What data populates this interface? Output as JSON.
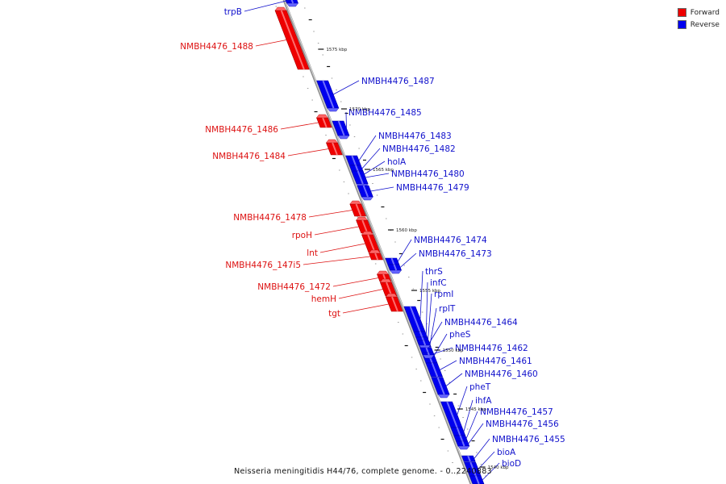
{
  "legend": {
    "forward_label": "Forward",
    "reverse_label": "Reverse",
    "forward_color": "#ee0000",
    "reverse_color": "#0000ee"
  },
  "caption": "Neisseria meningitidis H44/76, complete genome. - 0..2240883",
  "scale_marks": [
    "1575 kbp",
    "1570 kbp",
    "1565 kbp",
    "1560 kbp",
    "1555 kbp",
    "1550 kbp",
    "1545 kbp",
    "1540 kbp"
  ],
  "genes": [
    {
      "name": "trpB",
      "strand": "reverse"
    },
    {
      "name": "NMBH4476_1488",
      "strand": "forward"
    },
    {
      "name": "NMBH4476_1487",
      "strand": "reverse"
    },
    {
      "name": "NMBH4476_1486",
      "strand": "forward"
    },
    {
      "name": "NMBH4476_1485",
      "strand": "reverse"
    },
    {
      "name": "NMBH4476_1484",
      "strand": "forward"
    },
    {
      "name": "NMBH4476_1483",
      "strand": "reverse"
    },
    {
      "name": "NMBH4476_1482",
      "strand": "reverse"
    },
    {
      "name": "holA",
      "strand": "reverse"
    },
    {
      "name": "NMBH4476_1480",
      "strand": "reverse"
    },
    {
      "name": "NMBH4476_1479",
      "strand": "reverse"
    },
    {
      "name": "NMBH4476_1478",
      "strand": "forward"
    },
    {
      "name": "rpoH",
      "strand": "forward"
    },
    {
      "name": "lnt",
      "strand": "forward"
    },
    {
      "name": "NMBH4476_147i5",
      "strand": "forward"
    },
    {
      "name": "NMBH4476_1474",
      "strand": "reverse"
    },
    {
      "name": "NMBH4476_1473",
      "strand": "reverse"
    },
    {
      "name": "NMBH4476_1472",
      "strand": "forward"
    },
    {
      "name": "hemH",
      "strand": "forward"
    },
    {
      "name": "tgt",
      "strand": "forward"
    },
    {
      "name": "thrS",
      "strand": "reverse"
    },
    {
      "name": "infC",
      "strand": "reverse"
    },
    {
      "name": "rpmI",
      "strand": "reverse"
    },
    {
      "name": "rplT",
      "strand": "reverse"
    },
    {
      "name": "NMBH4476_1464",
      "strand": "reverse"
    },
    {
      "name": "pheS",
      "strand": "reverse"
    },
    {
      "name": "NMBH4476_1462",
      "strand": "reverse"
    },
    {
      "name": "NMBH4476_1461",
      "strand": "reverse"
    },
    {
      "name": "NMBH4476_1460",
      "strand": "reverse"
    },
    {
      "name": "pheT",
      "strand": "reverse"
    },
    {
      "name": "ihfA",
      "strand": "reverse"
    },
    {
      "name": "NMBH4476_1457",
      "strand": "reverse"
    },
    {
      "name": "NMBH4476_1456",
      "strand": "reverse"
    },
    {
      "name": "NMBH4476_1455",
      "strand": "reverse"
    },
    {
      "name": "bioA",
      "strand": "reverse"
    },
    {
      "name": "bioD",
      "strand": "reverse"
    }
  ]
}
